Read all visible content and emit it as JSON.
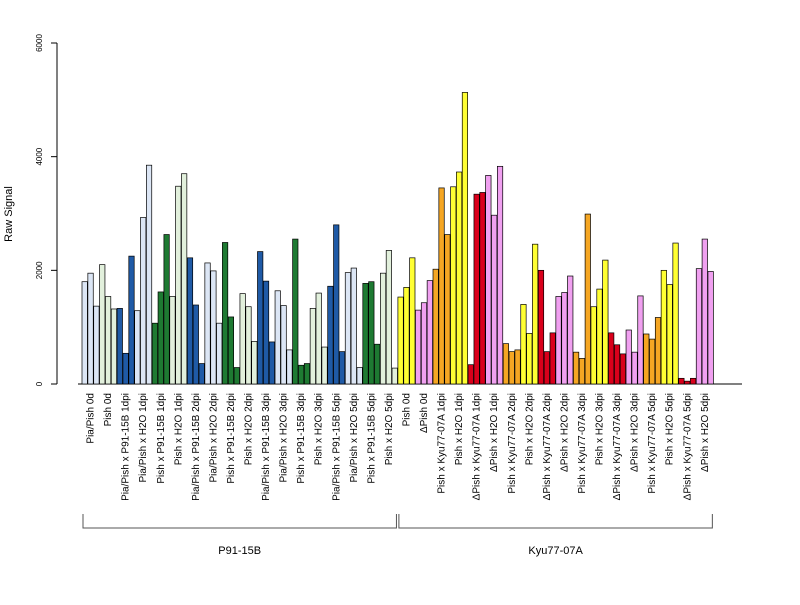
{
  "colors": {
    "lightblue": "#dce6f5",
    "blue": "#1f5aa6",
    "lightgreen": "#e2f0dc",
    "green": "#1e7a32",
    "yellow": "#ffff33",
    "pink": "#f0a0f0",
    "orange": "#f5a623",
    "red": "#d9001b"
  },
  "chart_data": {
    "type": "bar",
    "title": "",
    "xlabel": "",
    "ylabel": "Raw Signal",
    "ylim": [
      0,
      6000
    ],
    "yticks": [
      0,
      2000,
      4000,
      6000
    ],
    "grid": false,
    "categories": [
      "Pia/Pish 0d",
      "Pish 0d",
      "Pia/Pish x P91-15B 1dpi",
      "Pia/Pish x H2O 1dpi",
      "Pish x P91-15B 1dpi",
      "Pish x H2O 1dpi",
      "Pia/Pish x P91-15B 2dpi",
      "Pia/Pish x H2O 2dpi",
      "Pish x P91-15B 2dpi",
      "Pish x H2O 2dpi",
      "Pia/Pish x P91-15B 3dpi",
      "Pia/Pish x H2O 3dpi",
      "Pish x P91-15B 3dpi",
      "Pish x H2O 3dpi",
      "Pia/Pish x P91-15B 5dpi",
      "Pia/Pish x H2O 5dpi",
      "Pish x P91-15B 5dpi",
      "Pish x H2O 5dpi",
      "Pish 0d",
      "ΔPish 0d",
      "Pish x Kyu77-07A 1dpi",
      "Pish x H2O 1dpi",
      "ΔPish x Kyu77-07A 1dpi",
      "ΔPish x H2O 1dpi",
      "Pish x Kyu77-07A 2dpi",
      "Pish x H2O 2dpi",
      "ΔPish x Kyu77-07A 2dpi",
      "ΔPish x H2O 2dpi",
      "Pish x Kyu77-07A 3dpi",
      "Pish x H2O 3dpi",
      "ΔPish x Kyu77-07A 3dpi",
      "ΔPish x H2O 3dpi",
      "Pish x Kyu77-07A 5dpi",
      "Pish x H2O 5dpi",
      "ΔPish x Kyu77-07A 5dpi",
      "ΔPish x H2O 5dpi"
    ],
    "category_colors": [
      "lightblue",
      "lightgreen",
      "blue",
      "lightblue",
      "green",
      "lightgreen",
      "blue",
      "lightblue",
      "green",
      "lightgreen",
      "blue",
      "lightblue",
      "green",
      "lightgreen",
      "blue",
      "lightblue",
      "green",
      "lightgreen",
      "yellow",
      "pink",
      "orange",
      "yellow",
      "red",
      "pink",
      "orange",
      "yellow",
      "red",
      "pink",
      "orange",
      "yellow",
      "red",
      "pink",
      "orange",
      "yellow",
      "red",
      "pink"
    ],
    "values": [
      [
        1800,
        1950,
        1370
      ],
      [
        2100,
        1540,
        1320
      ],
      [
        1330,
        540,
        2250
      ],
      [
        1290,
        2930,
        3850
      ],
      [
        1070,
        1620,
        2630
      ],
      [
        1540,
        3480,
        3700
      ],
      [
        2220,
        1390,
        360
      ],
      [
        2130,
        1990,
        1070
      ],
      [
        2490,
        1180,
        290
      ],
      [
        1590,
        1360,
        750
      ],
      [
        2330,
        1810,
        740
      ],
      [
        1640,
        1380,
        600
      ],
      [
        2550,
        330,
        360
      ],
      [
        1330,
        1600,
        650
      ],
      [
        1720,
        2800,
        570
      ],
      [
        1960,
        2040,
        290
      ],
      [
        1770,
        1800,
        700
      ],
      [
        1950,
        2350,
        280
      ],
      [
        1530,
        1700,
        2220
      ],
      [
        1300,
        1430,
        1820
      ],
      [
        2020,
        3450,
        2630
      ],
      [
        3470,
        3730,
        5130
      ],
      [
        340,
        3340,
        3370
      ],
      [
        3670,
        2970,
        3830
      ],
      [
        710,
        570,
        600
      ],
      [
        1400,
        890,
        2460
      ],
      [
        2000,
        570,
        900
      ],
      [
        1540,
        1610,
        1900
      ],
      [
        560,
        450,
        2990
      ],
      [
        1360,
        1670,
        2180
      ],
      [
        900,
        690,
        530
      ],
      [
        950,
        560,
        1550
      ],
      [
        880,
        790,
        1170
      ],
      [
        2000,
        1750,
        2480
      ],
      [
        100,
        50,
        100
      ],
      [
        2030,
        2550,
        1980
      ]
    ],
    "groups": [
      {
        "name": "P91-15B",
        "start": 0,
        "end": 17
      },
      {
        "name": "Kyu77-07A",
        "start": 18,
        "end": 35
      }
    ]
  }
}
